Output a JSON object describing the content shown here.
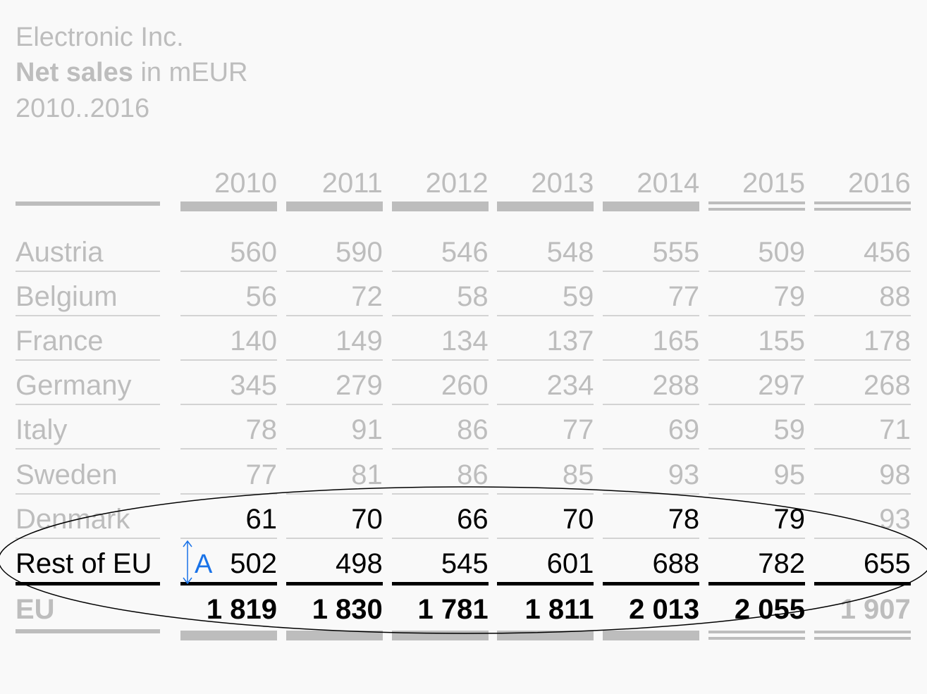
{
  "header": {
    "company": "Electronic Inc.",
    "measure_bold": "Net sales",
    "measure_unit": "in mEUR",
    "period": "2010..2016"
  },
  "colors": {
    "gray": "#bdbdbd",
    "black": "#000000",
    "accent": "#1a73e8",
    "background": "#f9f9f9"
  },
  "chart_data": {
    "type": "table",
    "columns": [
      "2010",
      "2011",
      "2012",
      "2013",
      "2014",
      "2015",
      "2016"
    ],
    "column_styles": [
      "actual",
      "actual",
      "actual",
      "actual",
      "actual",
      "plan",
      "plan"
    ],
    "rows": [
      {
        "label": "Austria",
        "values": [
          "560",
          "590",
          "546",
          "548",
          "555",
          "509",
          "456"
        ],
        "highlight": [
          false,
          false,
          false,
          false,
          false,
          false,
          false
        ]
      },
      {
        "label": "Belgium",
        "values": [
          "56",
          "72",
          "58",
          "59",
          "77",
          "79",
          "88"
        ],
        "highlight": [
          false,
          false,
          false,
          false,
          false,
          false,
          false
        ]
      },
      {
        "label": "France",
        "values": [
          "140",
          "149",
          "134",
          "137",
          "165",
          "155",
          "178"
        ],
        "highlight": [
          false,
          false,
          false,
          false,
          false,
          false,
          false
        ]
      },
      {
        "label": "Germany",
        "values": [
          "345",
          "279",
          "260",
          "234",
          "288",
          "297",
          "268"
        ],
        "highlight": [
          false,
          false,
          false,
          false,
          false,
          false,
          false
        ]
      },
      {
        "label": "Italy",
        "values": [
          "78",
          "91",
          "86",
          "77",
          "69",
          "59",
          "71"
        ],
        "highlight": [
          false,
          false,
          false,
          false,
          false,
          false,
          false
        ]
      },
      {
        "label": "Sweden",
        "values": [
          "77",
          "81",
          "86",
          "85",
          "93",
          "95",
          "98"
        ],
        "highlight": [
          false,
          false,
          false,
          false,
          false,
          false,
          false
        ]
      },
      {
        "label": "Denmark",
        "values": [
          "61",
          "70",
          "66",
          "70",
          "78",
          "79",
          "93"
        ],
        "highlight": [
          true,
          true,
          true,
          true,
          true,
          true,
          false
        ],
        "label_highlight": false
      },
      {
        "label": "Rest of EU",
        "values": [
          "502",
          "498",
          "545",
          "601",
          "688",
          "782",
          "655"
        ],
        "highlight": [
          true,
          true,
          true,
          true,
          true,
          true,
          true
        ],
        "label_highlight": true
      }
    ],
    "total": {
      "label": "EU",
      "values": [
        "1 819",
        "1 830",
        "1 781",
        "1 811",
        "2 013",
        "2 055",
        "1 907"
      ],
      "highlight": [
        true,
        true,
        true,
        true,
        true,
        true,
        false
      ]
    },
    "annotation": {
      "label": "A"
    }
  }
}
